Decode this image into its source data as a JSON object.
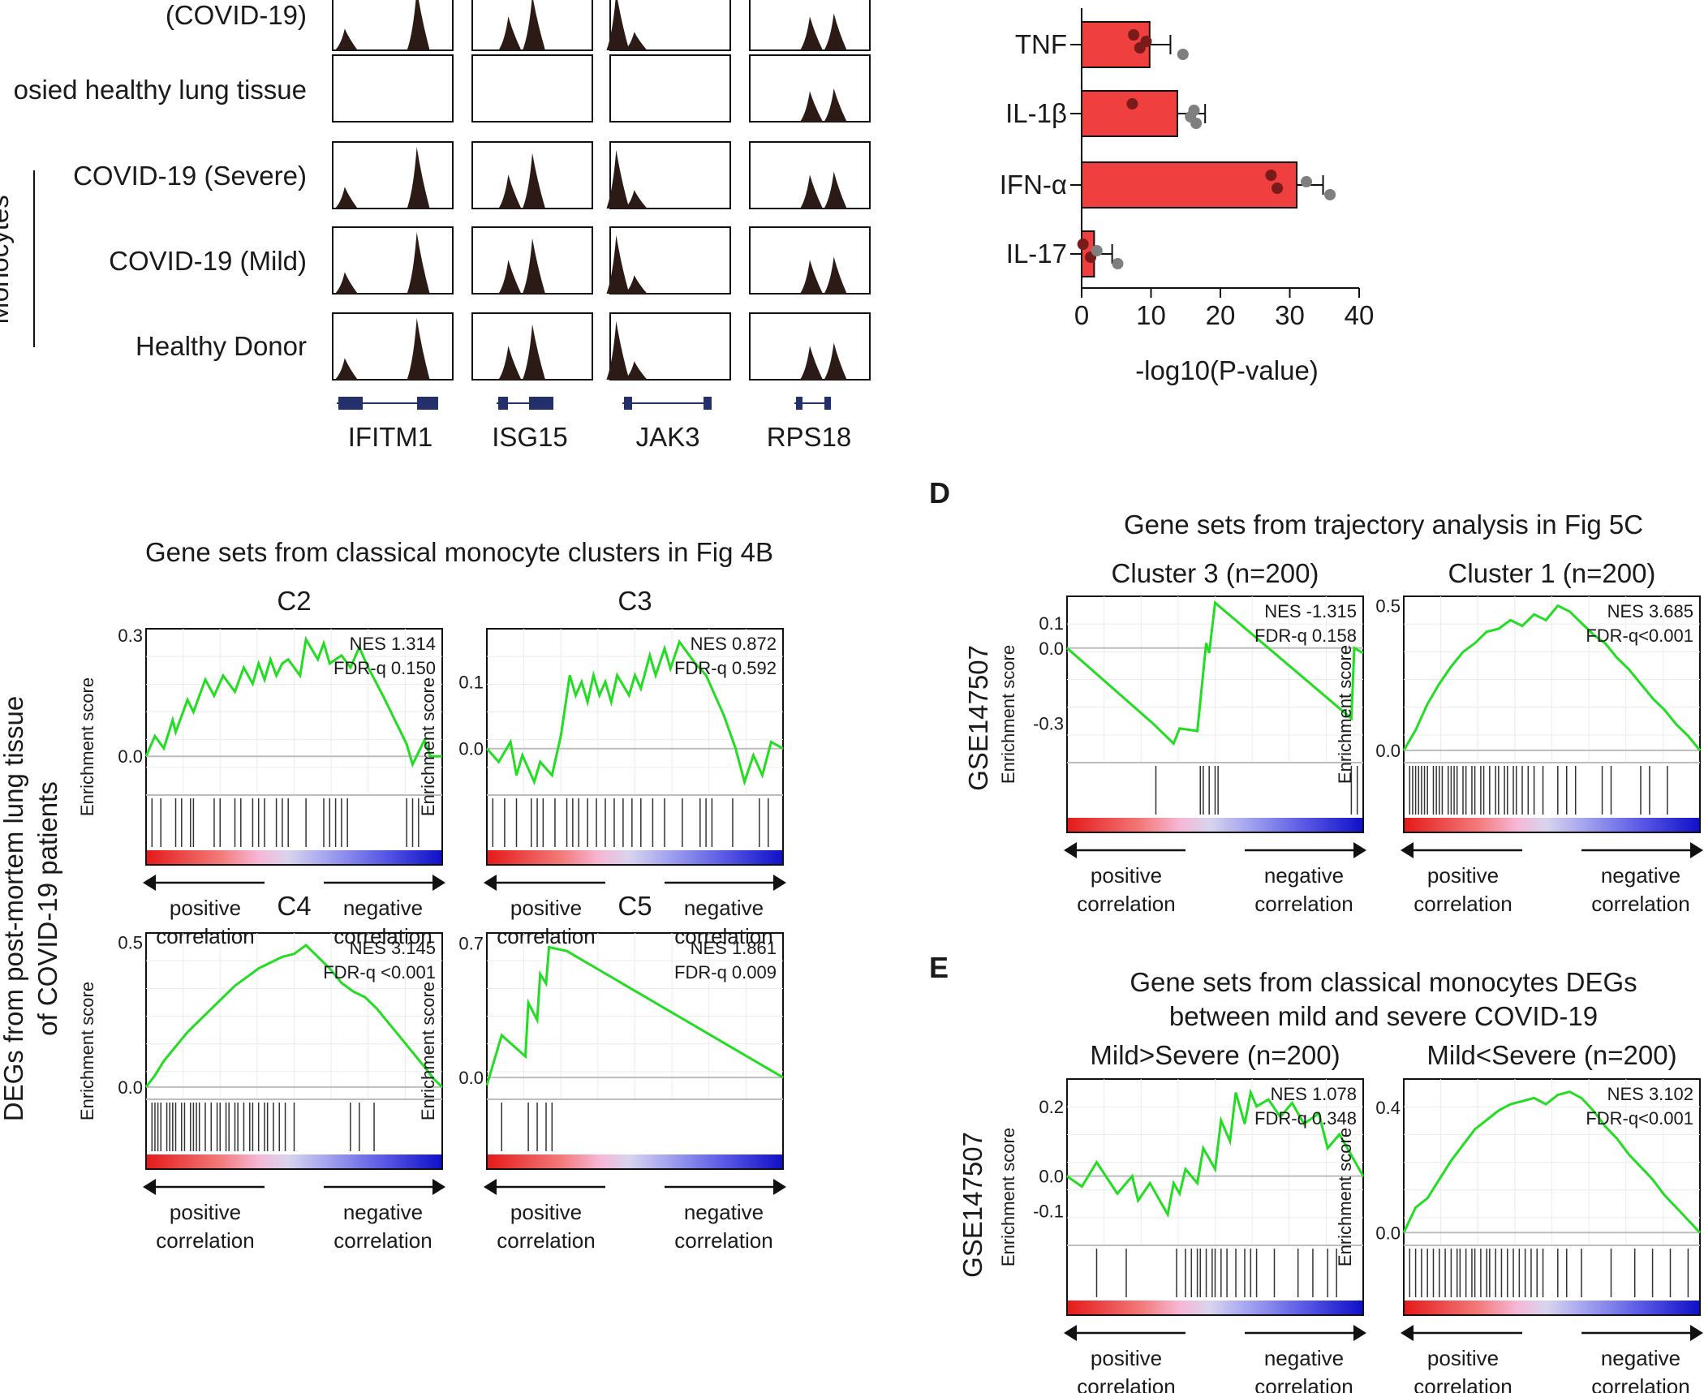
{
  "panel_letters": {
    "d": "D",
    "e": "E"
  },
  "tracks": {
    "row_labels": [
      "(COVID-19)",
      "osied healthy lung tissue",
      "COVID-19 (Severe)",
      "COVID-19 (Mild)",
      "Healthy Donor"
    ],
    "genes": [
      "IFITM1",
      "ISG15",
      "JAK3",
      "RPS18"
    ]
  },
  "gsea_common": {
    "y_label": "Enrichment score",
    "positive": [
      "positive",
      "correlation"
    ],
    "negative": [
      "negative",
      "correlation"
    ]
  },
  "section_c": {
    "title": "Gene sets from classical monocyte clusters in Fig 4B",
    "side_label_1": "DEGs from post-mortem lung tissue",
    "side_label_2": "of COVID-19 patients"
  },
  "section_d": {
    "title": "Gene sets from trajectory analysis in Fig 5C",
    "side_label": "GSE147507"
  },
  "section_e": {
    "title_1": "Gene sets from classical monocytes DEGs",
    "title_2": "between mild and severe COVID-19",
    "side_label": "GSE147507"
  },
  "chart_data": [
    {
      "type": "bar",
      "orientation": "horizontal",
      "categories": [
        "TNF",
        "IL-1β",
        "IFN-α",
        "IL-17"
      ],
      "values": [
        9.8,
        13.8,
        31.0,
        1.8
      ],
      "error": [
        3.0,
        4.0,
        3.8,
        2.6
      ],
      "points": [
        [
          7.5,
          8.4,
          9.3,
          14.6
        ],
        [
          7.3,
          15.7,
          16.2,
          16.5
        ],
        [
          27.3,
          28.2,
          32.4,
          35.8
        ],
        [
          0.2,
          1.3,
          2.2,
          5.2
        ]
      ],
      "bar_color": "#ef3f3f",
      "xlabel": "-log10(P-value)",
      "xlim": [
        0,
        40
      ],
      "xticks": [
        0,
        10,
        20,
        30,
        40
      ]
    },
    {
      "type": "line",
      "title": "C2",
      "nes": "NES 1.314",
      "fdr": "FDR-q 0.150",
      "y_ticks": [
        {
          "v": 0.3,
          "t": "0.3"
        },
        {
          "v": 0.0,
          "t": "0.0"
        }
      ],
      "ylim": [
        -0.08,
        0.3
      ],
      "x": [
        0,
        0.03,
        0.06,
        0.09,
        0.1,
        0.14,
        0.16,
        0.2,
        0.23,
        0.26,
        0.3,
        0.33,
        0.36,
        0.38,
        0.4,
        0.42,
        0.44,
        0.46,
        0.48,
        0.52,
        0.54,
        0.58,
        0.6,
        0.62,
        0.66,
        0.69,
        0.72,
        0.75,
        0.8,
        0.84,
        0.88,
        0.9,
        0.94,
        0.96,
        1.0
      ],
      "y": [
        0.0,
        0.05,
        0.02,
        0.09,
        0.06,
        0.14,
        0.11,
        0.19,
        0.15,
        0.2,
        0.16,
        0.22,
        0.18,
        0.23,
        0.19,
        0.24,
        0.2,
        0.23,
        0.24,
        0.2,
        0.29,
        0.24,
        0.28,
        0.23,
        0.25,
        0.22,
        0.27,
        0.22,
        0.15,
        0.09,
        0.03,
        -0.02,
        0.04,
        0.0,
        0.0
      ],
      "hits": [
        0.02,
        0.05,
        0.1,
        0.12,
        0.15,
        0.16,
        0.23,
        0.25,
        0.3,
        0.32,
        0.36,
        0.38,
        0.4,
        0.44,
        0.46,
        0.48,
        0.54,
        0.6,
        0.62,
        0.64,
        0.66,
        0.68,
        0.88,
        0.9,
        0.92
      ]
    },
    {
      "type": "line",
      "title": "C3",
      "nes": "NES 0.872",
      "fdr": "FDR-q 0.592",
      "y_ticks": [
        {
          "v": 0.1,
          "t": "0.1"
        },
        {
          "v": 0.0,
          "t": "0.0"
        }
      ],
      "ylim": [
        -0.06,
        0.17
      ],
      "x": [
        0,
        0.04,
        0.08,
        0.1,
        0.12,
        0.16,
        0.18,
        0.22,
        0.25,
        0.28,
        0.3,
        0.32,
        0.34,
        0.36,
        0.38,
        0.4,
        0.42,
        0.44,
        0.48,
        0.5,
        0.52,
        0.55,
        0.57,
        0.6,
        0.62,
        0.65,
        0.7,
        0.72,
        0.74,
        0.76,
        0.8,
        0.84,
        0.87,
        0.9,
        0.93,
        0.96,
        1.0
      ],
      "y": [
        0.0,
        -0.02,
        0.01,
        -0.04,
        -0.01,
        -0.05,
        -0.02,
        -0.04,
        0.02,
        0.11,
        0.08,
        0.1,
        0.07,
        0.11,
        0.08,
        0.1,
        0.07,
        0.11,
        0.08,
        0.11,
        0.09,
        0.14,
        0.11,
        0.15,
        0.12,
        0.16,
        0.13,
        0.12,
        0.11,
        0.09,
        0.05,
        0.0,
        -0.05,
        -0.01,
        -0.04,
        0.01,
        0.0
      ],
      "hits": [
        0.02,
        0.06,
        0.1,
        0.15,
        0.17,
        0.19,
        0.23,
        0.27,
        0.29,
        0.31,
        0.34,
        0.37,
        0.4,
        0.43,
        0.46,
        0.49,
        0.52,
        0.56,
        0.6,
        0.66,
        0.72,
        0.74,
        0.76,
        0.83,
        0.92,
        0.95
      ]
    },
    {
      "type": "line",
      "title": "C4",
      "nes": "NES 3.145",
      "fdr": "FDR-q <0.001",
      "y_ticks": [
        {
          "v": 0.5,
          "t": "0.5"
        },
        {
          "v": 0.0,
          "t": "0.0"
        }
      ],
      "ylim": [
        -0.02,
        0.51
      ],
      "x": [
        0,
        0.03,
        0.06,
        0.1,
        0.14,
        0.18,
        0.22,
        0.26,
        0.3,
        0.34,
        0.38,
        0.42,
        0.46,
        0.5,
        0.54,
        0.58,
        0.62,
        0.66,
        0.7,
        0.74,
        0.78,
        0.82,
        0.86,
        0.9,
        0.94,
        0.97,
        1.0
      ],
      "y": [
        0.0,
        0.04,
        0.09,
        0.14,
        0.19,
        0.23,
        0.27,
        0.31,
        0.35,
        0.38,
        0.41,
        0.43,
        0.45,
        0.46,
        0.49,
        0.45,
        0.41,
        0.36,
        0.33,
        0.31,
        0.27,
        0.22,
        0.17,
        0.12,
        0.07,
        0.03,
        0.0
      ],
      "hits": [
        0.02,
        0.03,
        0.04,
        0.05,
        0.07,
        0.08,
        0.09,
        0.1,
        0.12,
        0.13,
        0.15,
        0.16,
        0.17,
        0.18,
        0.2,
        0.22,
        0.24,
        0.25,
        0.27,
        0.28,
        0.3,
        0.31,
        0.33,
        0.35,
        0.36,
        0.38,
        0.4,
        0.41,
        0.43,
        0.45,
        0.47,
        0.5,
        0.69,
        0.72,
        0.77
      ]
    },
    {
      "type": "line",
      "title": "C5",
      "nes": "NES 1.861",
      "fdr": "FDR-q 0.009",
      "y_ticks": [
        {
          "v": 0.7,
          "t": "0.7"
        },
        {
          "v": 0.0,
          "t": "0.0"
        }
      ],
      "ylim": [
        -0.08,
        0.72
      ],
      "x": [
        0,
        0.05,
        0.13,
        0.14,
        0.17,
        0.18,
        0.2,
        0.21,
        0.27,
        1.0
      ],
      "y": [
        -0.04,
        0.22,
        0.11,
        0.39,
        0.3,
        0.54,
        0.49,
        0.68,
        0.66,
        0.0
      ],
      "hits": [
        0.05,
        0.14,
        0.17,
        0.2,
        0.22
      ]
    },
    {
      "type": "line",
      "title": "Cluster 3 (n=200)",
      "nes": "NES -1.315",
      "fdr": "FDR-q 0.158",
      "y_ticks": [
        {
          "v": 0.1,
          "t": "0.1"
        },
        {
          "v": 0.0,
          "t": "0.0"
        },
        {
          "v": -0.3,
          "t": "-0.3"
        }
      ],
      "ylim": [
        -0.43,
        0.18
      ],
      "x": [
        0,
        0.29,
        0.36,
        0.38,
        0.44,
        0.47,
        0.48,
        0.5,
        0.96,
        0.97,
        1.0
      ],
      "y": [
        0.0,
        -0.3,
        -0.38,
        -0.32,
        -0.33,
        0.02,
        -0.02,
        0.18,
        -0.28,
        0.0,
        -0.02
      ],
      "hits": [
        0.3,
        0.45,
        0.46,
        0.48,
        0.5,
        0.51,
        0.96,
        0.98
      ]
    },
    {
      "type": "line",
      "title": "Cluster 1 (n=200)",
      "nes": "NES 3.685",
      "fdr": "FDR-q<0.001",
      "y_ticks": [
        {
          "v": 0.5,
          "t": "0.5"
        },
        {
          "v": 0.0,
          "t": "0.0"
        }
      ],
      "ylim": [
        -0.02,
        0.51
      ],
      "x": [
        0,
        0.04,
        0.08,
        0.12,
        0.16,
        0.2,
        0.24,
        0.28,
        0.32,
        0.36,
        0.4,
        0.44,
        0.48,
        0.52,
        0.56,
        0.6,
        0.64,
        0.68,
        0.72,
        0.76,
        0.8,
        0.84,
        0.88,
        0.92,
        0.96,
        1.0
      ],
      "y": [
        0.0,
        0.07,
        0.16,
        0.23,
        0.29,
        0.34,
        0.37,
        0.41,
        0.42,
        0.45,
        0.43,
        0.47,
        0.45,
        0.5,
        0.48,
        0.44,
        0.4,
        0.37,
        0.32,
        0.28,
        0.23,
        0.18,
        0.14,
        0.09,
        0.05,
        0.0
      ],
      "hits": [
        0.02,
        0.03,
        0.04,
        0.05,
        0.06,
        0.07,
        0.08,
        0.1,
        0.11,
        0.12,
        0.13,
        0.15,
        0.16,
        0.17,
        0.18,
        0.2,
        0.21,
        0.23,
        0.24,
        0.26,
        0.27,
        0.29,
        0.31,
        0.32,
        0.34,
        0.35,
        0.37,
        0.38,
        0.4,
        0.42,
        0.44,
        0.47,
        0.52,
        0.55,
        0.58,
        0.67,
        0.7,
        0.8,
        0.83,
        0.89
      ]
    },
    {
      "type": "line",
      "title": "Mild>Severe (n=200)",
      "nes": "NES 1.078",
      "fdr": "FDR-q 0.348",
      "y_ticks": [
        {
          "v": 0.2,
          "t": "0.2"
        },
        {
          "v": 0.0,
          "t": "0.0"
        },
        {
          "v": -0.1,
          "t": "-0.1"
        }
      ],
      "ylim": [
        -0.18,
        0.26
      ],
      "x": [
        0,
        0.05,
        0.1,
        0.17,
        0.22,
        0.24,
        0.28,
        0.3,
        0.34,
        0.36,
        0.38,
        0.4,
        0.44,
        0.46,
        0.5,
        0.52,
        0.55,
        0.57,
        0.6,
        0.62,
        0.64,
        0.68,
        0.72,
        0.76,
        0.8,
        0.85,
        0.88,
        0.92,
        1.0
      ],
      "y": [
        0.0,
        -0.03,
        0.04,
        -0.05,
        0.0,
        -0.07,
        -0.02,
        -0.05,
        -0.11,
        -0.02,
        -0.05,
        0.02,
        -0.02,
        0.08,
        0.02,
        0.16,
        0.1,
        0.24,
        0.15,
        0.24,
        0.2,
        0.22,
        0.17,
        0.21,
        0.15,
        0.18,
        0.08,
        0.12,
        0.0
      ],
      "hits": [
        0.1,
        0.2,
        0.37,
        0.4,
        0.42,
        0.44,
        0.45,
        0.47,
        0.49,
        0.5,
        0.52,
        0.54,
        0.57,
        0.6,
        0.62,
        0.64,
        0.7,
        0.78,
        0.83,
        0.88,
        0.91
      ]
    },
    {
      "type": "line",
      "title": "Mild<Severe (n=200)",
      "nes": "NES 3.102",
      "fdr": "FDR-q<0.001",
      "y_ticks": [
        {
          "v": 0.4,
          "t": "0.4"
        },
        {
          "v": 0.0,
          "t": "0.0"
        }
      ],
      "ylim": [
        -0.02,
        0.47
      ],
      "x": [
        0,
        0.04,
        0.08,
        0.12,
        0.16,
        0.2,
        0.24,
        0.28,
        0.32,
        0.36,
        0.4,
        0.44,
        0.48,
        0.52,
        0.56,
        0.6,
        0.64,
        0.68,
        0.72,
        0.76,
        0.8,
        0.84,
        0.88,
        0.92,
        0.96,
        1.0
      ],
      "y": [
        0.0,
        0.08,
        0.11,
        0.17,
        0.23,
        0.28,
        0.33,
        0.36,
        0.39,
        0.41,
        0.42,
        0.43,
        0.41,
        0.44,
        0.45,
        0.43,
        0.39,
        0.34,
        0.3,
        0.25,
        0.21,
        0.17,
        0.12,
        0.08,
        0.04,
        0.0
      ],
      "hits": [
        0.02,
        0.04,
        0.06,
        0.08,
        0.1,
        0.12,
        0.14,
        0.16,
        0.18,
        0.19,
        0.21,
        0.23,
        0.24,
        0.26,
        0.28,
        0.29,
        0.31,
        0.33,
        0.35,
        0.37,
        0.39,
        0.41,
        0.43,
        0.45,
        0.47,
        0.52,
        0.55,
        0.6,
        0.7,
        0.78,
        0.84,
        0.9,
        0.96
      ]
    }
  ]
}
